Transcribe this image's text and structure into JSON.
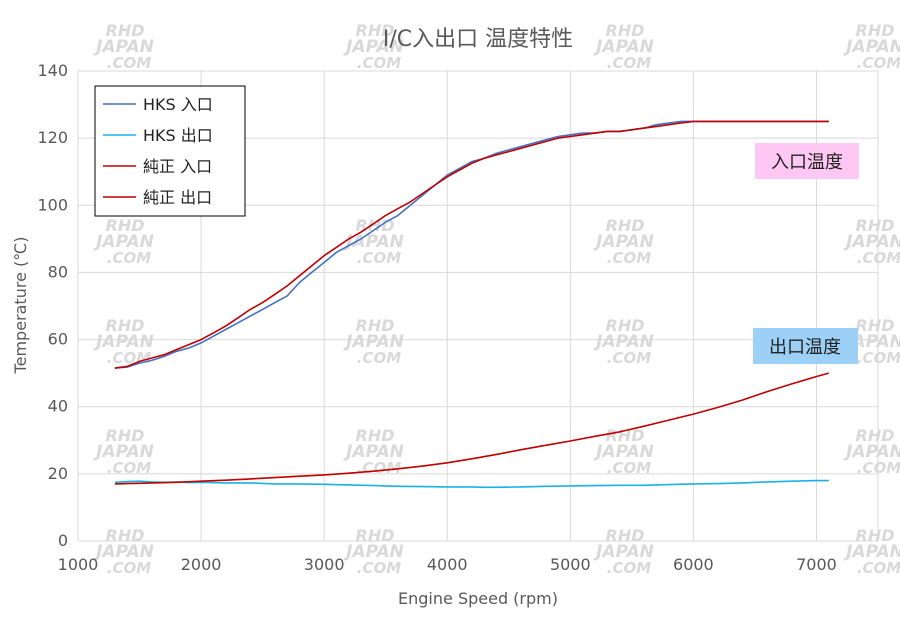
{
  "chart_data": {
    "type": "line",
    "title": "I/C入出口 温度特性",
    "xlabel": "Engine Speed (rpm)",
    "ylabel": "Temperature (℃)",
    "xlim": [
      1000,
      7500
    ],
    "ylim": [
      0,
      140
    ],
    "x_ticks": [
      1000,
      2000,
      3000,
      4000,
      5000,
      6000,
      7000
    ],
    "y_ticks": [
      0,
      20,
      40,
      60,
      80,
      100,
      120,
      140
    ],
    "grid": true,
    "legend_position": "top-left",
    "series": [
      {
        "name": "HKS 入口",
        "color": "#4472c4",
        "x": [
          1300,
          1400,
          1500,
          1600,
          1700,
          1800,
          1900,
          2000,
          2100,
          2200,
          2300,
          2400,
          2500,
          2600,
          2700,
          2800,
          2900,
          3000,
          3100,
          3200,
          3300,
          3400,
          3500,
          3600,
          3700,
          3800,
          3900,
          4000,
          4100,
          4200,
          4300,
          4400,
          4500,
          4600,
          4700,
          4800,
          4900,
          5000,
          5100,
          5200,
          5300,
          5400,
          5500,
          5600,
          5700,
          5800,
          5900,
          6000,
          6200,
          6400,
          6600,
          6800,
          7000,
          7100
        ],
        "y": [
          51.5,
          51.8,
          53,
          53.8,
          55,
          56.5,
          57.5,
          59,
          61,
          63,
          65,
          67,
          69,
          71,
          73,
          77,
          80,
          83,
          86,
          88,
          90,
          92.5,
          95,
          97,
          100,
          103,
          106,
          109,
          111,
          113,
          114,
          115.5,
          116.5,
          117.5,
          118.5,
          119.5,
          120.5,
          121,
          121.5,
          121.5,
          122,
          122,
          122.5,
          123,
          124,
          124.5,
          125,
          125,
          125,
          125,
          125,
          125,
          125,
          125
        ]
      },
      {
        "name": "HKS 出口",
        "color": "#1cb0e8",
        "x": [
          1300,
          1400,
          1500,
          1600,
          1700,
          1800,
          1900,
          2000,
          2200,
          2400,
          2600,
          2800,
          3000,
          3200,
          3400,
          3600,
          3800,
          4000,
          4200,
          4300,
          4400,
          4600,
          4800,
          5000,
          5200,
          5400,
          5600,
          5800,
          6000,
          6200,
          6400,
          6600,
          6800,
          7000,
          7100
        ],
        "y": [
          17.5,
          17.7,
          17.8,
          17.6,
          17.5,
          17.6,
          17.4,
          17.5,
          17.3,
          17.3,
          17,
          17,
          16.9,
          16.7,
          16.5,
          16.3,
          16.2,
          16.1,
          16.1,
          16,
          16,
          16.1,
          16.3,
          16.4,
          16.5,
          16.6,
          16.6,
          16.8,
          17,
          17.1,
          17.3,
          17.6,
          17.8,
          18,
          18
        ]
      },
      {
        "name": "純正 入口",
        "color": "#c00000",
        "x": [
          1300,
          1400,
          1500,
          1600,
          1700,
          1800,
          1900,
          2000,
          2100,
          2200,
          2300,
          2400,
          2500,
          2600,
          2700,
          2800,
          2900,
          3000,
          3100,
          3200,
          3300,
          3400,
          3500,
          3600,
          3700,
          3800,
          3900,
          4000,
          4100,
          4200,
          4300,
          4400,
          4500,
          4600,
          4700,
          4800,
          4900,
          5000,
          5100,
          5200,
          5300,
          5400,
          5500,
          5600,
          5700,
          5800,
          5900,
          6000,
          6200,
          6400,
          6600,
          6800,
          7000,
          7100
        ],
        "y": [
          51.5,
          52,
          53.5,
          54.5,
          55.5,
          57,
          58.5,
          60,
          62,
          64,
          66.5,
          69,
          71,
          73.5,
          76,
          79,
          82,
          85,
          87.5,
          90,
          92,
          94.5,
          97,
          99,
          101,
          103.5,
          106,
          108.5,
          110.5,
          112.5,
          114,
          115,
          116,
          117,
          118,
          119,
          120,
          120.5,
          121,
          121.5,
          122,
          122,
          122.5,
          123,
          123.5,
          124,
          124.5,
          125,
          125,
          125,
          125,
          125,
          125,
          125
        ]
      },
      {
        "name": "純正 出口",
        "color": "#c00000",
        "x": [
          1300,
          1400,
          1500,
          1600,
          1800,
          2000,
          2200,
          2400,
          2600,
          2800,
          3000,
          3200,
          3400,
          3600,
          3800,
          4000,
          4200,
          4400,
          4600,
          4800,
          5000,
          5200,
          5400,
          5600,
          5800,
          6000,
          6200,
          6400,
          6600,
          6800,
          7000,
          7100
        ],
        "y": [
          17,
          17.1,
          17.2,
          17.3,
          17.5,
          17.8,
          18.1,
          18.5,
          18.9,
          19.3,
          19.7,
          20.2,
          20.8,
          21.5,
          22.3,
          23.3,
          24.5,
          25.8,
          27.2,
          28.5,
          29.8,
          31.2,
          32.5,
          34.2,
          36,
          37.8,
          39.8,
          42,
          44.5,
          46.8,
          49,
          50
        ]
      }
    ],
    "annotations": [
      {
        "text": "入口温度",
        "background": "#ffc7f3"
      },
      {
        "text": "出口温度",
        "background": "#9dd0f6"
      }
    ]
  },
  "watermark": {
    "line1": "RHD",
    "line2": "JAPAN",
    "line3": ".COM"
  }
}
